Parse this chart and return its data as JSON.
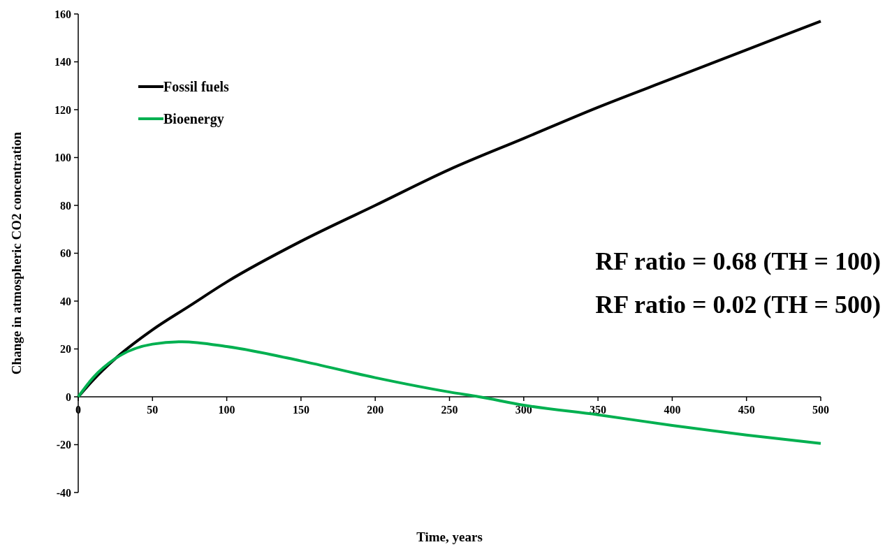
{
  "chart_data": {
    "type": "line",
    "xlabel": "Time, years",
    "ylabel": "Change in atmospheric CO2 concentration",
    "x": [
      0,
      10,
      25,
      50,
      75,
      100,
      150,
      200,
      250,
      300,
      350,
      400,
      450,
      500
    ],
    "series": [
      {
        "name": "Fossil fuels",
        "color": "#000000",
        "values": [
          0,
          7,
          16,
          28,
          38,
          48,
          65,
          80,
          95,
          108,
          121,
          133,
          145,
          157
        ]
      },
      {
        "name": "Bioenergy",
        "x": [
          0,
          10,
          25,
          50,
          70,
          100,
          150,
          200,
          250,
          270,
          300,
          350,
          400,
          450,
          500
        ],
        "color": "#00b050",
        "values": [
          0,
          8,
          16,
          22,
          23,
          21,
          15,
          8,
          2,
          0,
          -3.5,
          -7.5,
          -12,
          -16,
          -19.5
        ]
      }
    ],
    "xlim": [
      0,
      500
    ],
    "xticks": [
      0,
      50,
      100,
      150,
      200,
      250,
      300,
      350,
      400,
      450,
      500
    ],
    "ylim": [
      -40,
      160
    ],
    "yticks": [
      -40,
      -20,
      0,
      20,
      40,
      60,
      80,
      100,
      120,
      140,
      160
    ],
    "legend": "top left",
    "grid": false,
    "marker": "none",
    "line_style": "solid",
    "annotations": [
      "RF ratio = 0.68 (TH = 100)",
      "RF ratio = 0.02 (TH = 500)"
    ]
  }
}
